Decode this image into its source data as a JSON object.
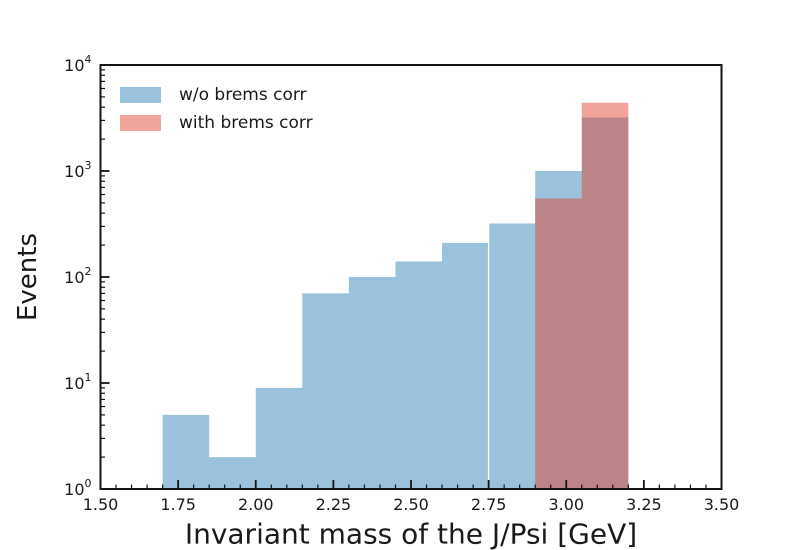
{
  "figure": {
    "background": "#ffffff",
    "text_color": "#1a1a1a",
    "axis_color": "#151515"
  },
  "chart_data": {
    "type": "histogram",
    "title": "",
    "xlabel": "Invariant mass of the J/Psi [GeV]",
    "ylabel": "Events",
    "yscale": "log",
    "xlim": [
      1.5,
      3.5
    ],
    "ylim": [
      1,
      10000
    ],
    "grid": false,
    "x_major_tick_labels": [
      "1.50",
      "1.75",
      "2.00",
      "2.25",
      "2.50",
      "2.75",
      "3.00",
      "3.25",
      "3.50"
    ],
    "x_major_step": 0.25,
    "x_minor_step": 0.05,
    "y_major_tick_exponents": [
      0,
      1,
      2,
      3,
      4
    ],
    "y_tick_base": "10",
    "bin_edges": [
      1.7,
      1.85,
      2.0,
      2.15,
      2.3,
      2.45,
      2.6,
      2.75,
      2.9,
      3.05,
      3.2
    ],
    "series": [
      {
        "name": "w/o brems corr",
        "fill": "#9ac2dd",
        "legend_swatch": "#9ac2dd",
        "values": [
          5,
          2,
          9,
          70,
          100,
          140,
          210,
          320,
          1000,
          3200
        ]
      },
      {
        "name": "with brems corr",
        "fill": "rgba(226,65,43,0.48)",
        "legend_swatch": "#f1a499",
        "overlap_color": "#bc8487",
        "values": [
          0,
          0,
          0,
          0,
          0,
          0,
          0,
          0,
          550,
          4400
        ]
      }
    ],
    "legend": {
      "location": "upper left",
      "frame": false
    }
  }
}
